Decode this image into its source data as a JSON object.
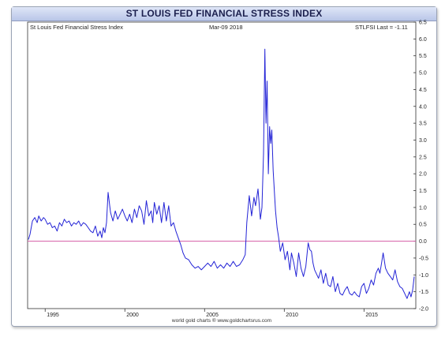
{
  "chart_data": {
    "type": "line",
    "title": "ST LOUIS FED FINANCIAL STRESS INDEX",
    "legend_label": "St Louis Fed Financial Stress Index",
    "date_label": "Mar-09  2018",
    "last_label": "STLFSI Last = -1.11",
    "footer": "world gold charts ® www.goldchartsrus.com",
    "xlim": [
      1993.9,
      2018.25
    ],
    "ylim": [
      -2.0,
      6.5
    ],
    "x_ticks": [
      "1995",
      "2000",
      "2005",
      "2010",
      "2015"
    ],
    "x_tick_values": [
      1995,
      2000,
      2005,
      2010,
      2015
    ],
    "y_ticks": [
      "6.5",
      "6.0",
      "5.5",
      "5.0",
      "4.5",
      "4.0",
      "3.5",
      "3.0",
      "2.5",
      "2.0",
      "1.5",
      "1.0",
      "0.5",
      "0.0",
      "-0.5",
      "-1.0",
      "-1.5",
      "-2.0"
    ],
    "reference_line": 0.0,
    "series": [
      {
        "color": "#2323d6",
        "x": [
          1993.95,
          1994.05,
          1994.2,
          1994.35,
          1994.5,
          1994.6,
          1994.75,
          1994.9,
          1995.0,
          1995.15,
          1995.3,
          1995.45,
          1995.6,
          1995.75,
          1995.9,
          1996.05,
          1996.2,
          1996.35,
          1996.5,
          1996.65,
          1996.8,
          1996.95,
          1997.1,
          1997.25,
          1997.4,
          1997.55,
          1997.7,
          1997.85,
          1998.0,
          1998.15,
          1998.3,
          1998.45,
          1998.55,
          1998.65,
          1998.75,
          1998.85,
          1998.95,
          1999.1,
          1999.25,
          1999.4,
          1999.55,
          1999.7,
          1999.85,
          2000.0,
          2000.15,
          2000.3,
          2000.45,
          2000.6,
          2000.75,
          2000.9,
          2001.05,
          2001.2,
          2001.35,
          2001.5,
          2001.65,
          2001.75,
          2001.85,
          2002.0,
          2002.15,
          2002.3,
          2002.45,
          2002.6,
          2002.75,
          2002.9,
          2003.05,
          2003.2,
          2003.35,
          2003.5,
          2003.65,
          2003.8,
          2004.0,
          2004.2,
          2004.4,
          2004.6,
          2004.8,
          2005.0,
          2005.2,
          2005.4,
          2005.6,
          2005.8,
          2006.0,
          2006.2,
          2006.4,
          2006.6,
          2006.8,
          2007.0,
          2007.2,
          2007.4,
          2007.55,
          2007.65,
          2007.8,
          2007.95,
          2008.1,
          2008.2,
          2008.35,
          2008.5,
          2008.6,
          2008.7,
          2008.78,
          2008.85,
          2008.92,
          2009.0,
          2009.08,
          2009.15,
          2009.22,
          2009.3,
          2009.38,
          2009.45,
          2009.55,
          2009.65,
          2009.75,
          2009.9,
          2010.05,
          2010.2,
          2010.35,
          2010.45,
          2010.6,
          2010.75,
          2010.9,
          2011.05,
          2011.2,
          2011.35,
          2011.5,
          2011.6,
          2011.7,
          2011.8,
          2011.9,
          2012.0,
          2012.15,
          2012.3,
          2012.45,
          2012.6,
          2012.75,
          2012.9,
          2013.05,
          2013.2,
          2013.35,
          2013.5,
          2013.65,
          2013.8,
          2013.95,
          2014.1,
          2014.25,
          2014.4,
          2014.55,
          2014.7,
          2014.85,
          2015.0,
          2015.15,
          2015.3,
          2015.45,
          2015.6,
          2015.75,
          2015.9,
          2016.0,
          2016.1,
          2016.2,
          2016.35,
          2016.5,
          2016.65,
          2016.8,
          2016.95,
          2017.1,
          2017.25,
          2017.4,
          2017.55,
          2017.7,
          2017.85,
          2017.95,
          2018.05,
          2018.15
        ],
        "values": [
          0.05,
          0.2,
          0.6,
          0.7,
          0.55,
          0.75,
          0.6,
          0.7,
          0.65,
          0.5,
          0.55,
          0.4,
          0.45,
          0.3,
          0.55,
          0.45,
          0.65,
          0.55,
          0.6,
          0.45,
          0.55,
          0.5,
          0.6,
          0.45,
          0.55,
          0.5,
          0.4,
          0.3,
          0.25,
          0.45,
          0.15,
          0.3,
          0.1,
          0.4,
          0.25,
          0.55,
          1.45,
          0.85,
          0.6,
          0.9,
          0.65,
          0.8,
          0.95,
          0.75,
          0.6,
          0.8,
          0.55,
          0.95,
          0.7,
          1.05,
          0.9,
          0.5,
          1.2,
          0.75,
          0.9,
          0.55,
          1.15,
          0.8,
          1.05,
          0.55,
          1.15,
          0.6,
          1.05,
          0.45,
          0.55,
          0.3,
          0.1,
          -0.1,
          -0.35,
          -0.5,
          -0.55,
          -0.7,
          -0.8,
          -0.75,
          -0.85,
          -0.75,
          -0.65,
          -0.75,
          -0.6,
          -0.8,
          -0.7,
          -0.8,
          -0.65,
          -0.75,
          -0.6,
          -0.75,
          -0.7,
          -0.55,
          -0.4,
          0.55,
          1.35,
          0.75,
          1.3,
          1.05,
          1.55,
          0.65,
          1.0,
          2.6,
          5.7,
          3.5,
          4.75,
          2.0,
          3.4,
          2.9,
          3.3,
          2.1,
          1.45,
          0.9,
          0.4,
          0.1,
          -0.3,
          -0.05,
          -0.55,
          -0.3,
          -0.85,
          -0.35,
          -0.65,
          -1.05,
          -0.35,
          -0.8,
          -1.05,
          -0.75,
          -0.05,
          -0.25,
          -0.3,
          -0.65,
          -0.85,
          -0.95,
          -1.1,
          -0.85,
          -1.25,
          -0.95,
          -1.3,
          -1.35,
          -1.05,
          -1.5,
          -1.25,
          -1.55,
          -1.6,
          -1.45,
          -1.35,
          -1.55,
          -1.6,
          -1.5,
          -1.6,
          -1.65,
          -1.35,
          -1.25,
          -1.55,
          -1.4,
          -1.15,
          -1.3,
          -0.95,
          -0.8,
          -0.95,
          -0.65,
          -0.35,
          -0.8,
          -0.95,
          -1.05,
          -1.15,
          -0.85,
          -1.2,
          -1.35,
          -1.4,
          -1.55,
          -1.7,
          -1.5,
          -1.65,
          -1.45,
          -1.05
        ]
      }
    ]
  }
}
